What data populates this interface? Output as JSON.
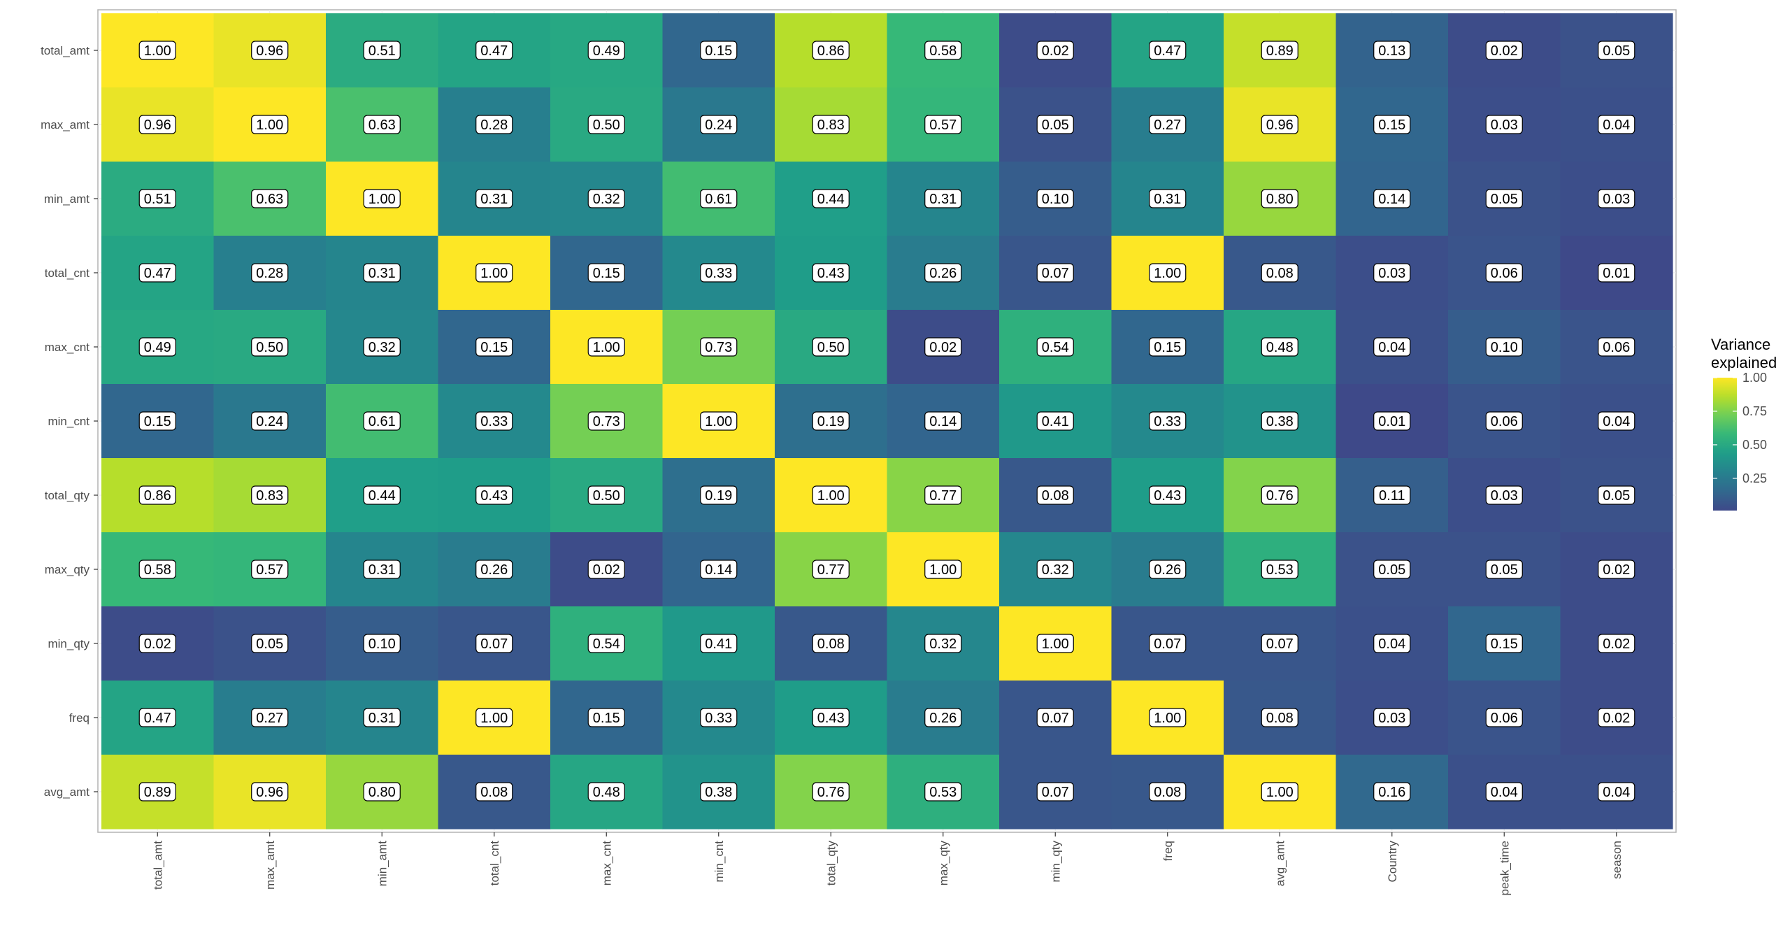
{
  "chart_data": {
    "type": "heatmap",
    "title": "",
    "xlabel": "",
    "ylabel": "",
    "x_categories": [
      "total_amt",
      "max_amt",
      "min_amt",
      "total_cnt",
      "max_cnt",
      "min_cnt",
      "total_qty",
      "max_qty",
      "min_qty",
      "freq",
      "avg_amt",
      "Country",
      "peak_time",
      "season"
    ],
    "y_categories": [
      "total_amt",
      "max_amt",
      "min_amt",
      "total_cnt",
      "max_cnt",
      "min_cnt",
      "total_qty",
      "max_qty",
      "min_qty",
      "freq",
      "avg_amt"
    ],
    "values": [
      [
        1.0,
        0.96,
        0.51,
        0.47,
        0.49,
        0.15,
        0.86,
        0.58,
        0.02,
        0.47,
        0.89,
        0.13,
        0.02,
        0.05
      ],
      [
        0.96,
        1.0,
        0.63,
        0.28,
        0.5,
        0.24,
        0.83,
        0.57,
        0.05,
        0.27,
        0.96,
        0.15,
        0.03,
        0.04
      ],
      [
        0.51,
        0.63,
        1.0,
        0.31,
        0.32,
        0.61,
        0.44,
        0.31,
        0.1,
        0.31,
        0.8,
        0.14,
        0.05,
        0.03
      ],
      [
        0.47,
        0.28,
        0.31,
        1.0,
        0.15,
        0.33,
        0.43,
        0.26,
        0.07,
        1.0,
        0.08,
        0.03,
        0.06,
        0.01
      ],
      [
        0.49,
        0.5,
        0.32,
        0.15,
        1.0,
        0.73,
        0.5,
        0.02,
        0.54,
        0.15,
        0.48,
        0.04,
        0.1,
        0.06
      ],
      [
        0.15,
        0.24,
        0.61,
        0.33,
        0.73,
        1.0,
        0.19,
        0.14,
        0.41,
        0.33,
        0.38,
        0.01,
        0.06,
        0.04
      ],
      [
        0.86,
        0.83,
        0.44,
        0.43,
        0.5,
        0.19,
        1.0,
        0.77,
        0.08,
        0.43,
        0.76,
        0.11,
        0.03,
        0.05
      ],
      [
        0.58,
        0.57,
        0.31,
        0.26,
        0.02,
        0.14,
        0.77,
        1.0,
        0.32,
        0.26,
        0.53,
        0.05,
        0.05,
        0.02
      ],
      [
        0.02,
        0.05,
        0.1,
        0.07,
        0.54,
        0.41,
        0.08,
        0.32,
        1.0,
        0.07,
        0.07,
        0.04,
        0.15,
        0.02
      ],
      [
        0.47,
        0.27,
        0.31,
        1.0,
        0.15,
        0.33,
        0.43,
        0.26,
        0.07,
        1.0,
        0.08,
        0.03,
        0.06,
        0.02
      ],
      [
        0.89,
        0.96,
        0.8,
        0.08,
        0.48,
        0.38,
        0.76,
        0.53,
        0.07,
        0.08,
        1.0,
        0.16,
        0.04,
        0.04
      ]
    ],
    "value_format": "0.00",
    "color_scale": {
      "name": "viridis",
      "limits": [
        0.01,
        1.0
      ],
      "stops": [
        "#440154",
        "#482878",
        "#3e4a89",
        "#31688e",
        "#26828e",
        "#1f9e89",
        "#35b779",
        "#6ece58",
        "#b5de2b",
        "#fde725"
      ]
    },
    "legend": {
      "title_lines": [
        "Variance",
        "explained"
      ],
      "ticks": [
        1.0,
        0.75,
        0.5,
        0.25
      ],
      "tick_labels": [
        "1.00",
        "0.75",
        "0.50",
        "0.25"
      ],
      "position": "right"
    },
    "grid": true,
    "panel_border_color": "#b3b3b3",
    "grid_color": "#ebebeb"
  }
}
